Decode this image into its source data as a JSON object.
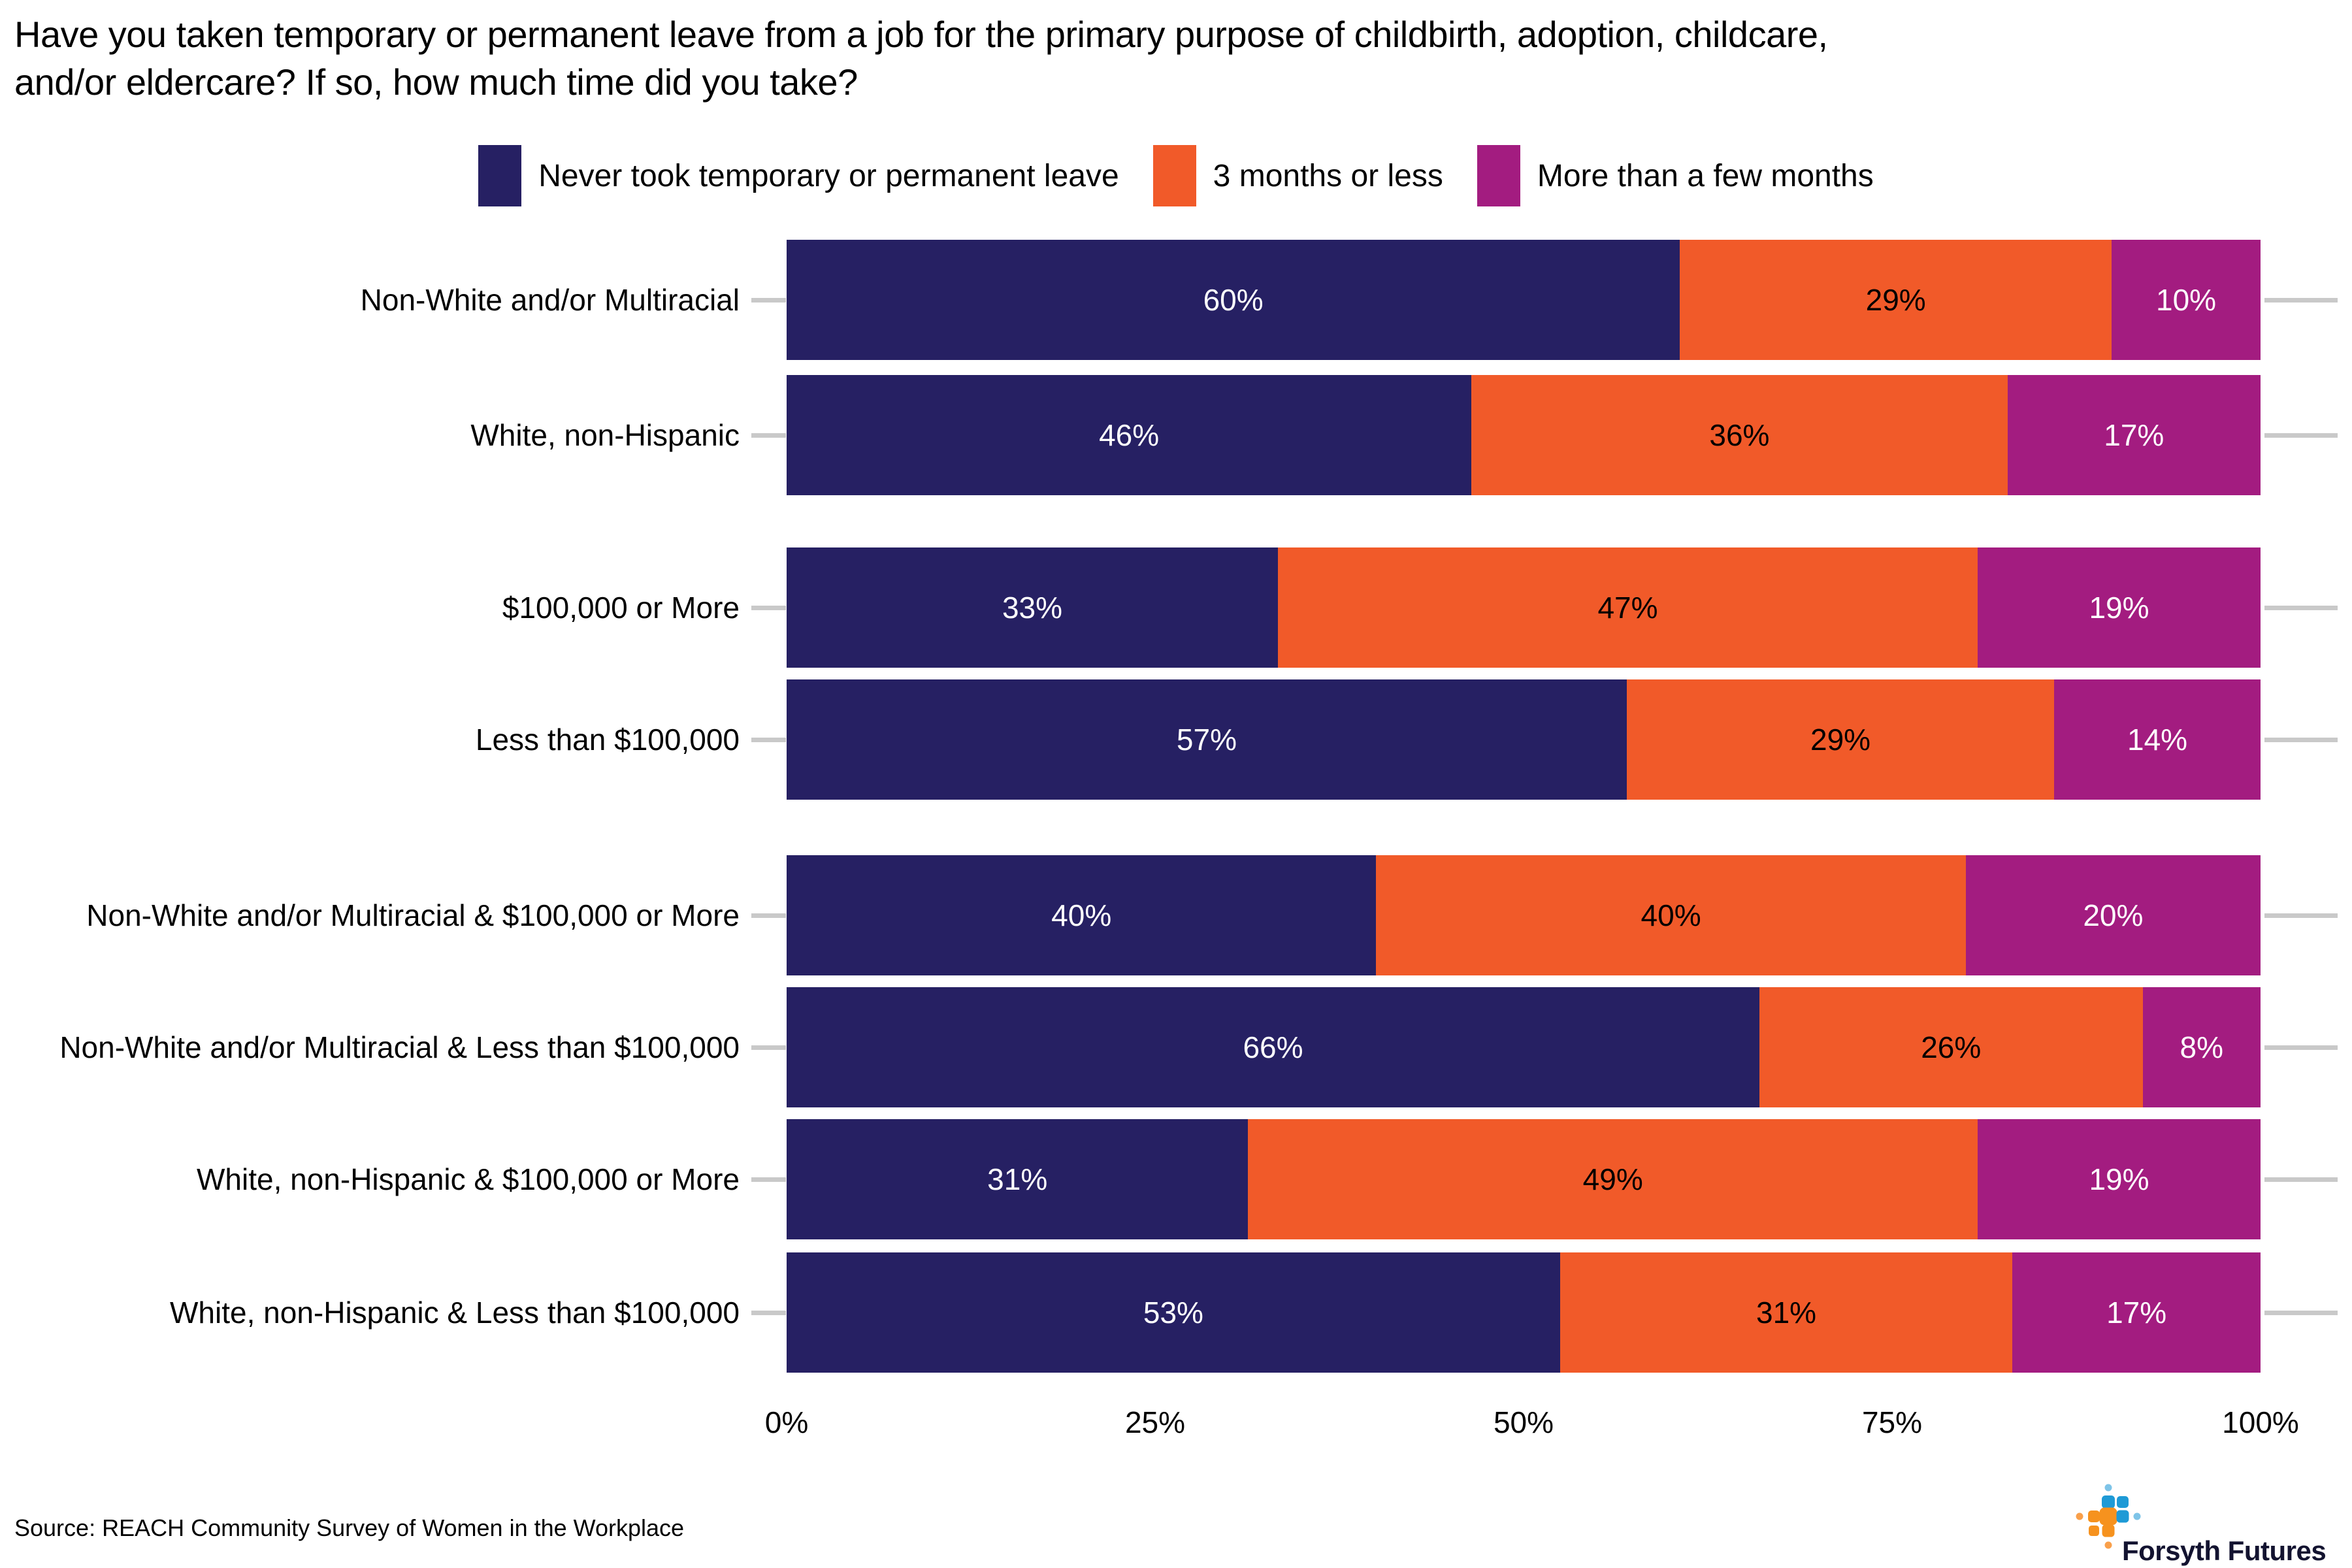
{
  "title": {
    "line1": "Have you taken temporary or permanent leave from a job for the primary purpose of childbirth, adoption, childcare,",
    "line2": "and/or eldercare? If so, how much time did you take?"
  },
  "chart_data": {
    "type": "bar",
    "stacked": true,
    "orientation": "horizontal",
    "units": "percent",
    "xlim": [
      0,
      100
    ],
    "x_ticks": [
      "0%",
      "25%",
      "50%",
      "75%",
      "100%"
    ],
    "x_tick_values": [
      0,
      25,
      50,
      75,
      100
    ],
    "grid": false,
    "legend_position": "top",
    "categories": [
      "Non-White and/or Multiracial",
      "White, non-Hispanic",
      "$100,000 or More",
      "Less than $100,000",
      "Non-White and/or Multiracial & $100,000 or More",
      "Non-White and/or Multiracial & Less than $100,000",
      "White, non-Hispanic & $100,000 or More",
      "White, non-Hispanic & Less than $100,000"
    ],
    "category_groups": [
      [
        0,
        1
      ],
      [
        2,
        3
      ],
      [
        4,
        5,
        6,
        7
      ]
    ],
    "series": [
      {
        "name": "Never took temporary or permanent leave",
        "color": "#262063",
        "label_color": "#ffffff",
        "values": [
          60,
          46,
          33,
          57,
          40,
          66,
          31,
          53
        ]
      },
      {
        "name": "3 months or less",
        "color": "#F15A29",
        "label_color": "#000000",
        "values": [
          29,
          36,
          47,
          29,
          40,
          26,
          49,
          31
        ]
      },
      {
        "name": "More than a few months",
        "color": "#A31C80",
        "label_color": "#ffffff",
        "values": [
          10,
          17,
          19,
          14,
          20,
          8,
          19,
          17
        ]
      }
    ]
  },
  "source": "Source: REACH Community Survey of Women in the Workplace",
  "logo": {
    "text": "Forsyth Futures",
    "icon_colors": {
      "blue": "#1E9AD6",
      "light_blue": "#7EC4E8",
      "orange": "#F6921E",
      "light_orange": "#F9A04B"
    }
  }
}
